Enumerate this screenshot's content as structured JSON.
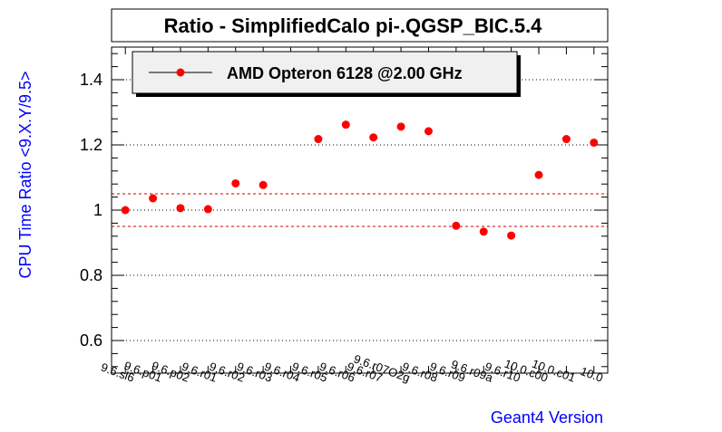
{
  "chart_data": {
    "type": "scatter",
    "title": "Ratio - SimplifiedCalo pi-.QGSP_BIC.5.4",
    "xlabel": "Geant4 Version",
    "ylabel": "CPU Time Ratio <9.X.Y/9.5>",
    "categories": [
      "9.6.sl6",
      "9.6.p01",
      "9.6.p02",
      "9.6.r01",
      "9.6.r02",
      "9.6.r03",
      "9.6.r04",
      "9.6.r05",
      "9.6.r06",
      "9.6.r07",
      "9.6.r07O2g",
      "9.6.r08",
      "9.6.r09",
      "9.6.r09a",
      "9.6.r10",
      "10.0.c00",
      "10.0.c01",
      "10.0"
    ],
    "series": [
      {
        "name": "AMD Opteron 6128 @2.00 GHz",
        "color": "#ff0000",
        "values": [
          1.0,
          1.036,
          1.006,
          1.003,
          1.082,
          1.077,
          null,
          1.218,
          1.262,
          1.223,
          1.256,
          1.242,
          0.952,
          0.934,
          0.922,
          1.108,
          1.218,
          1.207
        ]
      }
    ],
    "ylim": [
      0.5,
      1.5
    ],
    "yticks": [
      0.6,
      0.8,
      1.0,
      1.2,
      1.4
    ],
    "ytick_labels": [
      "0.6",
      "0.8",
      "1",
      "1.2",
      "1.4"
    ],
    "reference_lines": [
      1.05,
      0.95
    ],
    "reference_line_color": "#cc0000",
    "grid": "horizontal dotted",
    "legend_position": "top-left",
    "axis_title_color": "#0000ff"
  }
}
